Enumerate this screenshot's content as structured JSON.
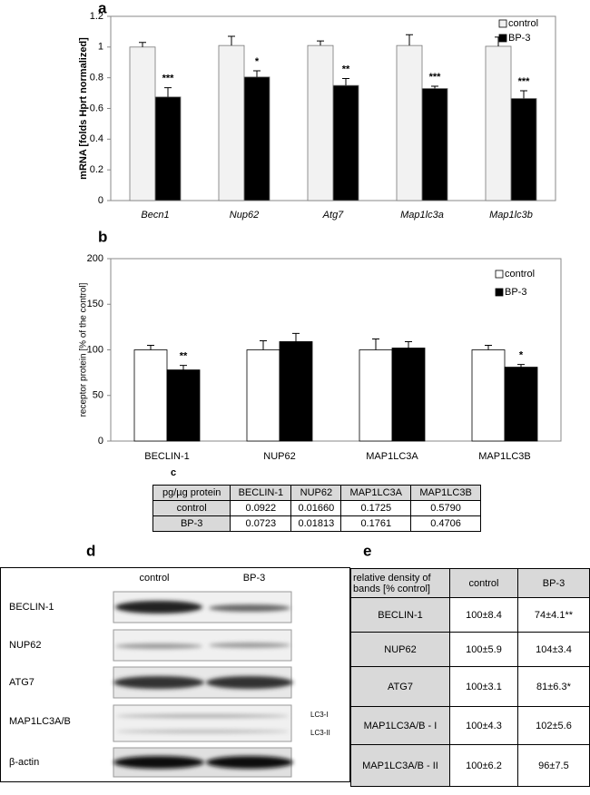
{
  "chart_data": [
    {
      "type": "bar",
      "panel": "a",
      "ylabel": "mRNA [folds Hprt normalized]",
      "categories": [
        "Becn1",
        "Nup62",
        "Atg7",
        "Map1lc3a",
        "Map1lc3b"
      ],
      "series": [
        {
          "name": "control",
          "color": "#f2f2f2",
          "values": [
            1.0,
            1.01,
            1.01,
            1.01,
            1.005
          ],
          "errors": [
            0.03,
            0.06,
            0.03,
            0.07,
            0.06
          ]
        },
        {
          "name": "BP-3",
          "color": "#000000",
          "values": [
            0.675,
            0.805,
            0.75,
            0.73,
            0.665
          ],
          "errors": [
            0.06,
            0.04,
            0.045,
            0.015,
            0.05
          ],
          "annotations": [
            "***",
            "*",
            "**",
            "***",
            "***"
          ]
        }
      ],
      "ylim": [
        0,
        1.2
      ],
      "yticks": [
        0,
        0.2,
        0.4,
        0.6,
        0.8,
        1,
        1.2
      ],
      "legend": "upper right"
    },
    {
      "type": "bar",
      "panel": "b",
      "ylabel": "receptor protein [% of the control]",
      "categories": [
        "BECLIN-1",
        "NUP62",
        "MAP1LC3A",
        "MAP1LC3B"
      ],
      "series": [
        {
          "name": "control",
          "color": "#ffffff",
          "values": [
            100,
            100,
            100,
            100
          ],
          "errors": [
            5,
            10,
            12,
            5
          ]
        },
        {
          "name": "BP-3",
          "color": "#000000",
          "values": [
            78,
            109,
            102,
            81
          ],
          "errors": [
            5,
            9,
            7,
            3
          ],
          "annotations": [
            "**",
            null,
            null,
            "*"
          ]
        }
      ],
      "ylim": [
        0,
        200
      ],
      "yticks": [
        0,
        50,
        100,
        150,
        200
      ],
      "legend": "upper right"
    }
  ],
  "table_c": {
    "panel": "c",
    "header": [
      "pg/µg protein",
      "BECLIN-1",
      "NUP62",
      "MAP1LC3A",
      "MAP1LC3B"
    ],
    "rows": [
      [
        "control",
        "0.0922",
        "0.01660",
        "0.1725",
        "0.5790"
      ],
      [
        "BP-3",
        "0.0723",
        "0.01813",
        "0.1761",
        "0.4706"
      ]
    ]
  },
  "blot_d": {
    "panel": "d",
    "columns": [
      "control",
      "BP-3"
    ],
    "rows": [
      "BECLIN-1",
      "NUP62",
      "ATG7",
      "MAP1LC3A/B",
      "β-actin"
    ],
    "band_labels": [
      "LC3-I",
      "LC3-II"
    ]
  },
  "table_e": {
    "panel": "e",
    "header": [
      "relative density of bands [% control]",
      "control",
      "BP-3"
    ],
    "rows": [
      [
        "BECLIN-1",
        "100±8.4",
        "74±4.1**"
      ],
      [
        "NUP62",
        "100±5.9",
        "104±3.4"
      ],
      [
        "ATG7",
        "100±3.1",
        "81±6.3*"
      ],
      [
        "MAP1LC3A/B - I",
        "100±4.3",
        "102±5.6"
      ],
      [
        "MAP1LC3A/B - II",
        "100±6.2",
        "96±7.5"
      ]
    ]
  }
}
